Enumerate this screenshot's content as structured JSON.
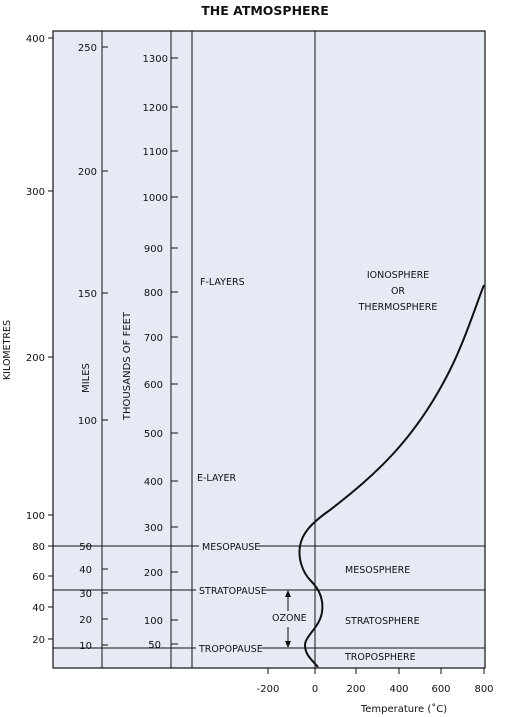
{
  "title": "THE ATMOSPHERE",
  "colors": {
    "panel": "#e6eaf4",
    "ink": "#111111",
    "background": "#ffffff"
  },
  "km_axis": {
    "label": "KILOMETRES",
    "ticks": [
      "20",
      "40",
      "60",
      "80",
      "100",
      "200",
      "300",
      "400"
    ]
  },
  "miles_axis": {
    "label": "MILES",
    "ticks": [
      "10",
      "20",
      "30",
      "40",
      "50",
      "100",
      "150",
      "200",
      "250"
    ]
  },
  "feet_axis": {
    "label": "THOUSANDS OF FEET",
    "ticks": [
      "50",
      "100",
      "200",
      "300",
      "400",
      "500",
      "600",
      "700",
      "800",
      "900",
      "1000",
      "1100",
      "1200",
      "1300"
    ]
  },
  "temp_axis": {
    "label": "Temperature (˚C)",
    "ticks": [
      "-200",
      "0",
      "200",
      "400",
      "600",
      "800"
    ]
  },
  "boundaries": {
    "mesopause": "MESOPAUSE",
    "stratopause": "STRATOPAUSE",
    "tropopause": "TROPOPAUSE"
  },
  "layers": {
    "f_layers": "F-LAYERS",
    "e_layer": "E-LAYER",
    "mesosphere": "MESOSPHERE",
    "stratosphere": "STRATOSPHERE",
    "troposphere": "TROPOSPHERE"
  },
  "ionosphere": {
    "line1": "IONOSPHERE",
    "line2": "OR",
    "line3": "THERMOSPHERE"
  },
  "ozone": "OZONE"
}
